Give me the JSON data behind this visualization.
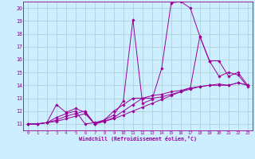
{
  "bg_color": "#cceeff",
  "grid_color": "#aacccc",
  "line_color": "#990099",
  "marker_color": "#990099",
  "xlabel": "Windchill (Refroidissement éolien,°C)",
  "xlim": [
    -0.5,
    23.5
  ],
  "ylim": [
    10.5,
    20.5
  ],
  "yticks": [
    11,
    12,
    13,
    14,
    15,
    16,
    17,
    18,
    19,
    20
  ],
  "xticks": [
    0,
    1,
    2,
    3,
    4,
    5,
    6,
    7,
    8,
    9,
    10,
    11,
    12,
    13,
    14,
    15,
    16,
    17,
    18,
    19,
    20,
    21,
    22,
    23
  ],
  "series1": {
    "x": [
      0,
      1,
      2,
      3,
      4,
      5,
      6,
      7,
      8,
      9,
      10,
      11,
      12,
      13,
      14,
      15,
      16,
      17,
      18,
      19,
      20,
      21,
      22,
      23
    ],
    "y": [
      11.0,
      11.0,
      11.1,
      11.5,
      11.8,
      12.0,
      11.0,
      11.1,
      11.3,
      11.7,
      12.8,
      19.1,
      12.6,
      12.9,
      15.3,
      20.4,
      20.5,
      20.0,
      17.8,
      15.9,
      14.7,
      15.0,
      14.8,
      13.9
    ]
  },
  "series2": {
    "x": [
      0,
      1,
      2,
      3,
      4,
      5,
      6,
      7,
      8,
      9,
      10,
      11,
      12,
      13,
      14,
      15,
      16,
      17,
      18,
      19,
      20,
      21,
      22,
      23
    ],
    "y": [
      11.0,
      11.0,
      11.1,
      12.5,
      11.9,
      12.2,
      11.9,
      11.0,
      11.3,
      12.0,
      12.5,
      13.0,
      13.0,
      13.2,
      13.3,
      13.5,
      13.6,
      13.8,
      17.8,
      15.9,
      15.9,
      14.7,
      15.0,
      14.0
    ]
  },
  "series3": {
    "x": [
      0,
      1,
      2,
      3,
      4,
      5,
      6,
      7,
      8,
      9,
      10,
      11,
      12,
      13,
      14,
      15,
      16,
      17,
      18,
      19,
      20,
      21,
      22,
      23
    ],
    "y": [
      11.0,
      11.0,
      11.1,
      11.3,
      11.6,
      11.8,
      12.0,
      11.0,
      11.2,
      11.5,
      12.0,
      12.5,
      13.0,
      13.0,
      13.1,
      13.3,
      13.5,
      13.7,
      13.9,
      14.0,
      14.0,
      14.0,
      14.2,
      14.0
    ]
  },
  "series4": {
    "x": [
      0,
      1,
      2,
      3,
      4,
      5,
      6,
      7,
      8,
      9,
      10,
      11,
      12,
      13,
      14,
      15,
      16,
      17,
      18,
      19,
      20,
      21,
      22,
      23
    ],
    "y": [
      11.0,
      11.0,
      11.1,
      11.2,
      11.4,
      11.6,
      11.8,
      11.0,
      11.2,
      11.4,
      11.7,
      12.0,
      12.3,
      12.6,
      12.9,
      13.2,
      13.5,
      13.8,
      13.9,
      14.0,
      14.1,
      14.0,
      14.2,
      14.0
    ]
  }
}
